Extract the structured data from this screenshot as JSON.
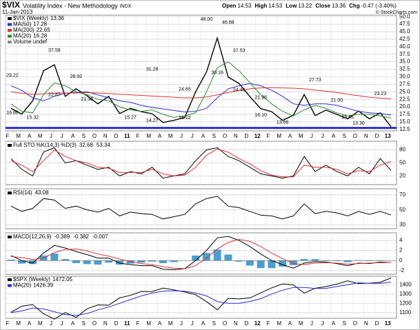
{
  "chart_data": [
    {
      "type": "line",
      "title": "$VIX",
      "subtitle": "Volatility Index - New Methodology",
      "exchange": "INDX",
      "date": "11-Jan-2013",
      "quote": [
        {
          "label": "Open",
          "value": 14.53
        },
        {
          "label": "High",
          "value": 14.53
        },
        {
          "label": "Low",
          "value": 13.22
        },
        {
          "label": "Close",
          "value": 13.36
        },
        {
          "label": "Chg",
          "value": "-0.47 (-3.40%)"
        }
      ],
      "copyright": "© StockCharts.com",
      "legend": "stacked",
      "legend_extra": "Volume undef",
      "categories": [
        "F",
        "M",
        "A",
        "M",
        "J",
        "J",
        "A",
        "S",
        "O",
        "N",
        "D",
        "11",
        "F",
        "M",
        "A",
        "M",
        "J",
        "J",
        "A",
        "S",
        "O",
        "N",
        "D",
        "12",
        "F",
        "M",
        "A",
        "M",
        "J",
        "J",
        "A",
        "S",
        "O",
        "N",
        "D",
        "13"
      ],
      "series": [
        {
          "name": "$VIX (Weekly)",
          "last": 13.36,
          "color": "#000000",
          "values": [
            19.5,
            17.6,
            22,
            32,
            34,
            23.5,
            26,
            23.7,
            21,
            23.5,
            17.8,
            19.5,
            18.4,
            17.7,
            14.8,
            15.5,
            16.5,
            25,
            31.6,
            42.9,
            29.9,
            27.8,
            23.4,
            19.4,
            18.4,
            15.5,
            17.2,
            24.1,
            17.1,
            18.9,
            17.5,
            16,
            18.6,
            16,
            18,
            13.36
          ]
        },
        {
          "name": "MA(50)",
          "last": 17.28,
          "color": "#2a2ad0",
          "values": [
            27,
            25.5,
            23,
            22,
            23.5,
            24.5,
            24.8,
            25,
            24,
            23,
            22,
            21.5,
            20.5,
            19.8,
            19.3,
            18.8,
            18.3,
            18.5,
            19.5,
            23,
            26,
            27,
            27.8,
            27,
            25.5,
            23.5,
            21,
            20.5,
            21,
            21,
            20.5,
            19.5,
            18.5,
            18,
            17.8,
            17.28
          ]
        },
        {
          "name": "MA(200)",
          "last": 22.65,
          "color": "#e03030",
          "values": [
            25,
            24.5,
            24.2,
            24.3,
            24.5,
            24.6,
            24.6,
            24.7,
            24.6,
            24.4,
            24.2,
            24,
            23.8,
            23.6,
            23.4,
            23.2,
            23,
            23,
            23.3,
            24,
            24.8,
            25.5,
            26,
            26.3,
            26.4,
            26.3,
            26.2,
            26,
            25.6,
            25.2,
            24.8,
            24.2,
            23.7,
            23.2,
            22.9,
            22.65
          ]
        },
        {
          "name": "MA(20)",
          "last": 16.28,
          "color": "#2a8a2a",
          "values": [
            21,
            18.5,
            18,
            24,
            28,
            27,
            25,
            24,
            22.5,
            22,
            20,
            19,
            18.5,
            19,
            17.5,
            16.5,
            17,
            18,
            25,
            33,
            35,
            32,
            28,
            24,
            21,
            18.5,
            17,
            19,
            20.5,
            19.5,
            18,
            17,
            17.5,
            17.5,
            17,
            16.28
          ]
        }
      ],
      "hline": 13,
      "hline_color": "#1010d0",
      "annotations": [
        {
          "index": 0,
          "value": 29.22,
          "label": "29.22"
        },
        {
          "index": 0,
          "value": 16.86,
          "label": "16.86"
        },
        {
          "index": 2,
          "value": 15.32,
          "label": "15.32"
        },
        {
          "index": 4,
          "value": 37.58,
          "label": "37.58"
        },
        {
          "index": 4,
          "value": 22.87,
          "label": "22.87"
        },
        {
          "index": 6,
          "value": 28.92,
          "label": "28.92"
        },
        {
          "index": 7,
          "value": 21.36,
          "label": "21.36"
        },
        {
          "index": 13,
          "value": 31.28,
          "label": "31.28"
        },
        {
          "index": 11,
          "value": 15.27,
          "label": "15.27"
        },
        {
          "index": 13,
          "value": 14.27,
          "label": "14.27"
        },
        {
          "index": 16,
          "value": 24.65,
          "label": "24.65"
        },
        {
          "index": 16,
          "value": 15.12,
          "label": "15.12"
        },
        {
          "index": 18,
          "value": 48,
          "label": "48.00"
        },
        {
          "index": 20,
          "value": 46.88,
          "label": "46.88"
        },
        {
          "index": 19,
          "value": 30.16,
          "label": "30.16"
        },
        {
          "index": 21,
          "value": 37.53,
          "label": "37.53"
        },
        {
          "index": 21,
          "value": 24.44,
          "label": "24.44"
        },
        {
          "index": 23,
          "value": 21.98,
          "label": "21.98"
        },
        {
          "index": 23,
          "value": 16.1,
          "label": "16.10"
        },
        {
          "index": 25,
          "value": 13.66,
          "label": "13.66"
        },
        {
          "index": 28,
          "value": 27.73,
          "label": "27.73"
        },
        {
          "index": 30,
          "value": 21,
          "label": "21.00"
        },
        {
          "index": 31,
          "value": 15.45,
          "label": "15.45"
        },
        {
          "index": 32,
          "value": 13.3,
          "label": "13.30"
        },
        {
          "index": 34,
          "value": 23.23,
          "label": "23.23"
        }
      ],
      "ylim": [
        12,
        50.5
      ],
      "grid": true,
      "yticks": [
        {
          "value": 12.5,
          "label": "12.5"
        },
        {
          "value": 15,
          "label": "15.0"
        },
        {
          "value": 17.5,
          "label": "17.5"
        },
        {
          "value": 20,
          "label": "20.0"
        },
        {
          "value": 22.5,
          "label": "22.5"
        },
        {
          "value": 25,
          "label": "25.0"
        },
        {
          "value": 27.5,
          "label": "27.5"
        },
        {
          "value": 30,
          "label": "30.0"
        },
        {
          "value": 32.5,
          "label": "32.5"
        },
        {
          "value": 35,
          "label": "35.0"
        },
        {
          "value": 37.5,
          "label": "37.5"
        },
        {
          "value": 40,
          "label": "40.0"
        },
        {
          "value": 42.5,
          "label": "42.5"
        },
        {
          "value": 45,
          "label": "45.0"
        },
        {
          "value": 47.5,
          "label": "47.5"
        },
        {
          "value": 50,
          "label": "50.0"
        }
      ]
    },
    {
      "type": "line",
      "label": "Full STO %K(14,3) %D(3)",
      "legend": "inline",
      "series": [
        {
          "last": 32.68,
          "color": "#000000",
          "values": [
            60,
            35,
            20,
            75,
            85,
            50,
            55,
            45,
            35,
            40,
            20,
            30,
            25,
            40,
            15,
            20,
            25,
            55,
            80,
            85,
            65,
            55,
            40,
            25,
            20,
            15,
            20,
            65,
            30,
            45,
            30,
            20,
            40,
            25,
            60,
            32.68
          ]
        },
        {
          "last": 53.34,
          "color": "#e03030",
          "values": [
            55,
            45,
            30,
            55,
            80,
            65,
            55,
            50,
            40,
            38,
            28,
            28,
            28,
            35,
            25,
            20,
            22,
            40,
            68,
            82,
            75,
            60,
            48,
            32,
            22,
            18,
            18,
            45,
            40,
            40,
            35,
            25,
            32,
            30,
            45,
            53.34
          ]
        }
      ],
      "ylim": [
        0,
        100
      ],
      "yticks": [
        20,
        50,
        80
      ],
      "grid": true
    },
    {
      "type": "line",
      "label": "RSI(14)",
      "legend": "inline",
      "series": [
        {
          "last": 43.08,
          "color": "#000000",
          "values": [
            55,
            48,
            52,
            65,
            63,
            52,
            55,
            50,
            47,
            52,
            42,
            47,
            45,
            44,
            38,
            41,
            44,
            58,
            65,
            68,
            55,
            53,
            48,
            43,
            42,
            38,
            42,
            58,
            45,
            48,
            46,
            42,
            48,
            44,
            48,
            43.08
          ]
        }
      ],
      "ylim": [
        25,
        78
      ],
      "yticks": [
        30,
        50,
        70
      ],
      "grid": true
    },
    {
      "type": "line",
      "label": "MACD(12,26,9)",
      "legend": "inline",
      "series": [
        {
          "kind": "bar",
          "last": -0.007,
          "color": "#4a9fd0",
          "values": [
            0.2,
            -0.6,
            -0.7,
            1,
            1.4,
            0.3,
            -0.5,
            -0.7,
            -0.8,
            -0.4,
            -0.8,
            -0.6,
            -0.4,
            -0.2,
            -0.5,
            -0.3,
            0,
            1,
            1.5,
            2.2,
            1.2,
            -0.2,
            -1,
            -1.5,
            -1.5,
            -1.2,
            -0.9,
            0.3,
            0.3,
            0.1,
            -0.1,
            -0.3,
            0.1,
            -0.1,
            0.1,
            -0.007
          ]
        },
        {
          "last": -0.389,
          "color": "#000000",
          "values": [
            1,
            0,
            -0.5,
            1.5,
            3,
            2.5,
            1.8,
            1.2,
            0.5,
            0.5,
            -0.5,
            -0.8,
            -1,
            -1,
            -1.7,
            -1.8,
            -1.6,
            0,
            2,
            4.5,
            4.8,
            4,
            2.8,
            1.3,
            0,
            -0.8,
            -1.5,
            -0.5,
            -0.2,
            -0.3,
            -0.6,
            -1,
            -0.5,
            -0.6,
            -0.3,
            -0.389
          ]
        },
        {
          "last": -0.382,
          "color": "#e03030",
          "values": [
            0.8,
            0.6,
            0.2,
            0.5,
            1.6,
            2.2,
            2.3,
            1.9,
            1.3,
            0.9,
            0.3,
            -0.2,
            -0.6,
            -0.8,
            -1.2,
            -1.5,
            -1.6,
            -1,
            0.5,
            2.3,
            3.6,
            4.2,
            3.8,
            2.8,
            1.5,
            0.4,
            -0.6,
            -0.8,
            -0.5,
            -0.4,
            -0.5,
            -0.7,
            -0.6,
            -0.5,
            -0.4,
            -0.382
          ]
        }
      ],
      "legend_order": [
        1,
        2,
        0
      ],
      "ylim": [
        -2.7,
        5.5
      ],
      "yticks": [
        -2,
        0,
        2,
        4
      ],
      "grid": true
    },
    {
      "type": "line",
      "legend": "stacked",
      "categories": [
        "F",
        "M",
        "A",
        "M",
        "J",
        "J",
        "A",
        "S",
        "O",
        "N",
        "D",
        "11",
        "F",
        "M",
        "A",
        "M",
        "J",
        "J",
        "A",
        "S",
        "O",
        "N",
        "D",
        "12",
        "F",
        "M",
        "A",
        "M",
        "J",
        "J",
        "A",
        "S",
        "O",
        "N",
        "D",
        "13"
      ],
      "series": [
        {
          "name": "$SPX (Weekly)",
          "last": 1472.05,
          "color": "#000000",
          "values": [
            1104,
            1169,
            1187,
            1089,
            1031,
            1101,
            1049,
            1141,
            1183,
            1180,
            1258,
            1286,
            1327,
            1326,
            1364,
            1345,
            1321,
            1292,
            1219,
            1131,
            1253,
            1247,
            1258,
            1312,
            1366,
            1408,
            1398,
            1310,
            1362,
            1379,
            1406,
            1441,
            1412,
            1416,
            1426,
            1472.05
          ]
        },
        {
          "name": "MA(20)",
          "last": 1426.39,
          "color": "#2a2ad0",
          "values": [
            1100,
            1120,
            1150,
            1140,
            1110,
            1080,
            1070,
            1090,
            1130,
            1160,
            1200,
            1240,
            1280,
            1310,
            1330,
            1335,
            1330,
            1310,
            1280,
            1220,
            1200,
            1200,
            1220,
            1250,
            1300,
            1340,
            1370,
            1370,
            1360,
            1360,
            1380,
            1400,
            1420,
            1415,
            1415,
            1426.39
          ]
        }
      ],
      "ylim": [
        1040,
        1490
      ],
      "yticks": [
        1100,
        1200,
        1300,
        1400
      ],
      "grid": true
    }
  ]
}
